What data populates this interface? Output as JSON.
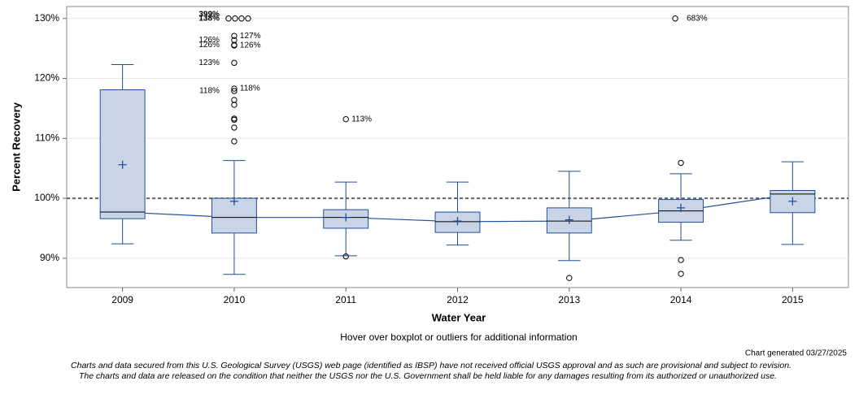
{
  "chart_data": {
    "type": "boxplot",
    "xlabel": "Water Year",
    "ylabel": "Percent Recovery",
    "note": "Hover over boxplot or outliers for additional information",
    "generated": "Chart generated 03/27/2025",
    "disclaimer": [
      "Charts and data secured from this U.S. Geological Survey (USGS) web page (identified as IBSP) have not received official USGS approval and as such are provisional and subject to revision.",
      "The charts and data are released on the condition that neither the USGS nor the U.S. Government shall be held liable for any damages resulting from its authorized or unauthorized use."
    ],
    "categories": [
      "2009",
      "2010",
      "2011",
      "2012",
      "2013",
      "2014",
      "2015"
    ],
    "boxes": [
      {
        "low": 92.4,
        "q1": 96.6,
        "median": 97.7,
        "q3": 118.1,
        "high": 122.3,
        "mean": 105.6,
        "outliers": []
      },
      {
        "low": 87.3,
        "q1": 94.2,
        "median": 96.8,
        "q3": 100.0,
        "high": 106.3,
        "mean": 99.5,
        "outliers": [
          {
            "value": 130
          },
          {
            "value": 130
          },
          {
            "value": 130
          },
          {
            "value": 130
          },
          {
            "value": 126.4,
            "label": "126%"
          },
          {
            "value": 127.1,
            "label": "127%"
          },
          {
            "value": 125.6,
            "label": "126%"
          },
          {
            "value": 125.5,
            "label": "126%"
          },
          {
            "value": 122.6,
            "label": "123%"
          },
          {
            "value": 118.3,
            "label": "118%"
          },
          {
            "value": 117.9,
            "label": "118%"
          },
          {
            "value": 116.4
          },
          {
            "value": 115.6
          },
          {
            "value": 113.3
          },
          {
            "value": 113.1
          },
          {
            "value": 111.8
          },
          {
            "value": 109.5
          }
        ]
      },
      {
        "low": 90.4,
        "q1": 95.0,
        "median": 96.8,
        "q3": 98.1,
        "high": 102.7,
        "mean": 96.8,
        "outliers": [
          {
            "value": 90.3
          },
          {
            "value": 113.2,
            "label": "113%"
          }
        ]
      },
      {
        "low": 92.2,
        "q1": 94.3,
        "median": 96.1,
        "q3": 97.7,
        "high": 102.7,
        "mean": 96.2,
        "outliers": []
      },
      {
        "low": 89.6,
        "q1": 94.2,
        "median": 96.2,
        "q3": 98.4,
        "high": 104.5,
        "mean": 96.4,
        "outliers": [
          {
            "value": 86.7
          }
        ]
      },
      {
        "low": 93.0,
        "q1": 96.0,
        "median": 97.9,
        "q3": 99.8,
        "high": 104.1,
        "mean": 98.4,
        "outliers": [
          {
            "value": 105.9
          },
          {
            "value": 89.7
          },
          {
            "value": 87.4
          },
          {
            "value": 130
          }
        ]
      },
      {
        "low": 92.3,
        "q1": 97.6,
        "median": 100.7,
        "q3": 101.3,
        "high": 106.1,
        "mean": 99.5,
        "outliers": []
      }
    ],
    "annotations": [
      {
        "text": "399%",
        "category": 1,
        "y": 130
      },
      {
        "text": "138%",
        "category": 1,
        "y": 130
      },
      {
        "text": "683%",
        "category": 5,
        "y": 130
      }
    ],
    "reference": 100,
    "ylim": [
      85.1,
      132.0
    ],
    "yticks": [
      {
        "value": 90,
        "label": "90%"
      },
      {
        "value": 100,
        "label": "100%"
      },
      {
        "value": 110,
        "label": "110%"
      },
      {
        "value": 120,
        "label": "120%"
      },
      {
        "value": 130,
        "label": "130%"
      }
    ],
    "grid": true,
    "box_color": "#c9d5e7",
    "line_color": "#1f4e9a"
  }
}
